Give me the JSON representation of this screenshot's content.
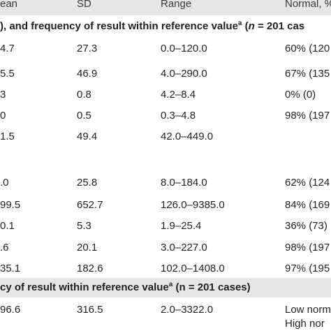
{
  "header": {
    "mean": "ean",
    "sd": "SD",
    "range": "Range",
    "normal": "Normal, %"
  },
  "section1": {
    "prefix": "), and frequency of result within reference value",
    "sup": "a",
    "paren_open": " (",
    "n_var": "n",
    "n_rest": " = 201 cas"
  },
  "rows1": [
    {
      "mean": "4.7",
      "sd": "27.3",
      "range": "0.0–120.0",
      "normal": "60% (120"
    },
    {
      "mean": "5.5",
      "sd": "46.9",
      "range": "4.0–290.0",
      "normal": "67% (135"
    },
    {
      "mean": "3",
      "sd": "0.8",
      "range": "4.2–8.4",
      "normal": "0% (0)"
    },
    {
      "mean": "0",
      "sd": "0.5",
      "range": "0.3–4.8",
      "normal": "98% (197"
    },
    {
      "mean": "1.5",
      "sd": "49.4",
      "range": "42.0–449.0",
      "normal": ""
    }
  ],
  "rows2": [
    {
      "mean": ".0",
      "sd": "25.8",
      "range": "8.0–184.0",
      "normal": "62% (124"
    },
    {
      "mean": "99.5",
      "sd": "652.7",
      "range": "126.0–9385.0",
      "normal": "84% (169"
    },
    {
      "mean": "0.1",
      "sd": "5.3",
      "range": "1.9–25.4",
      "normal": "36% (73)"
    },
    {
      "mean": ".6",
      "sd": "20.1",
      "range": "3.0–227.0",
      "normal": "98% (197"
    },
    {
      "mean": "35.1",
      "sd": "182.6",
      "range": "102.0–1408.0",
      "normal": "97% (195"
    }
  ],
  "section2": {
    "prefix": "cy of result within reference value",
    "sup": "a",
    "suffix": " (n = 201 cases)"
  },
  "rows3": [
    {
      "mean": "96.6",
      "sd": "316.5",
      "range": "2.0–3322.0",
      "normal": "Low norm",
      "normal2": "High nor"
    }
  ]
}
